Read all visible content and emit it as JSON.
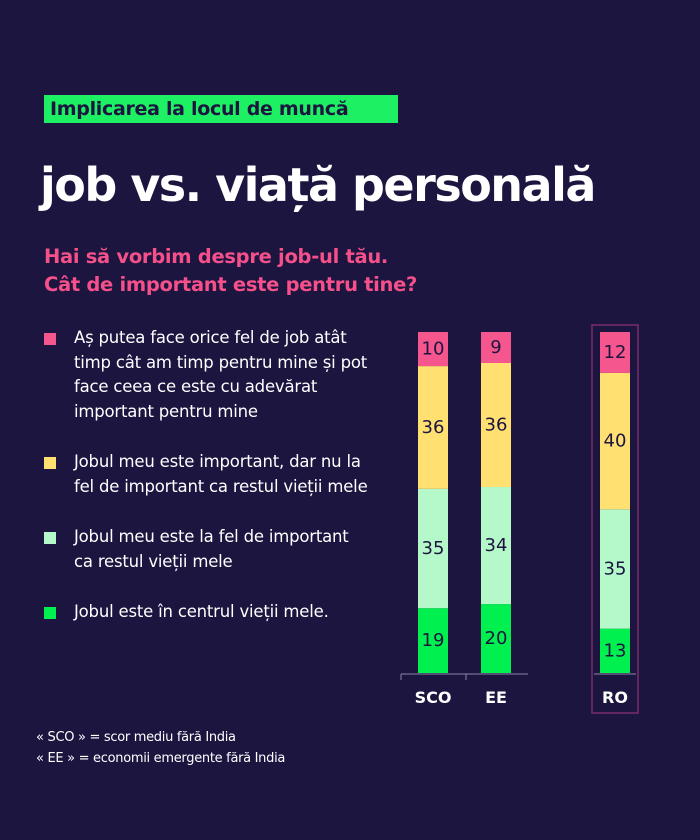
{
  "header": {
    "tag": "Implicarea la locul de muncă",
    "title": "job vs. viață personală",
    "subtitle_lines": [
      "Hai să vorbim despre job-ul tău.",
      "Cât de important este pentru tine?"
    ]
  },
  "colors": {
    "background": "#1c1540",
    "pink": "#f5568e",
    "yellow": "#ffe071",
    "mint": "#b5f8c9",
    "green": "#00f04f",
    "highlight_frame": "#7a2d6a"
  },
  "chart_data": {
    "type": "bar",
    "stacked": true,
    "categories": [
      "SCO",
      "EE",
      "RO"
    ],
    "highlighted_category": "RO",
    "series": [
      {
        "name": "Jobul este în centrul vieții mele.",
        "color": "#00f04f",
        "values": [
          19,
          20,
          13
        ]
      },
      {
        "name": "Jobul meu este la fel de important ca restul vieții mele",
        "color": "#b5f8c9",
        "values": [
          35,
          34,
          35
        ]
      },
      {
        "name": "Jobul meu este important, dar nu la fel de important ca restul vieții mele",
        "color": "#ffe071",
        "values": [
          36,
          36,
          40
        ]
      },
      {
        "name": "Aș putea face orice fel de job atât timp cât am timp pentru mine și pot face ceea ce este cu adevărat important pentru mine",
        "color": "#f5568e",
        "values": [
          10,
          9,
          12
        ]
      }
    ],
    "legend": [
      {
        "label": "Aș putea face orice fel de job atât timp cât am timp pentru mine și pot face ceea ce este cu adevărat important pentru mine",
        "color": "#f5568e"
      },
      {
        "label": "Jobul meu este important, dar nu la fel de important ca restul vieții mele",
        "color": "#ffe071"
      },
      {
        "label": "Jobul meu este la fel de important ca restul vieții mele",
        "color": "#b5f8c9"
      },
      {
        "label": "Jobul este în centrul vieții mele.",
        "color": "#00f04f"
      }
    ],
    "legend_placement": "left"
  },
  "notes": [
    "« SCO » = scor mediu fără India",
    "« EE » = economii emergente fără India"
  ]
}
